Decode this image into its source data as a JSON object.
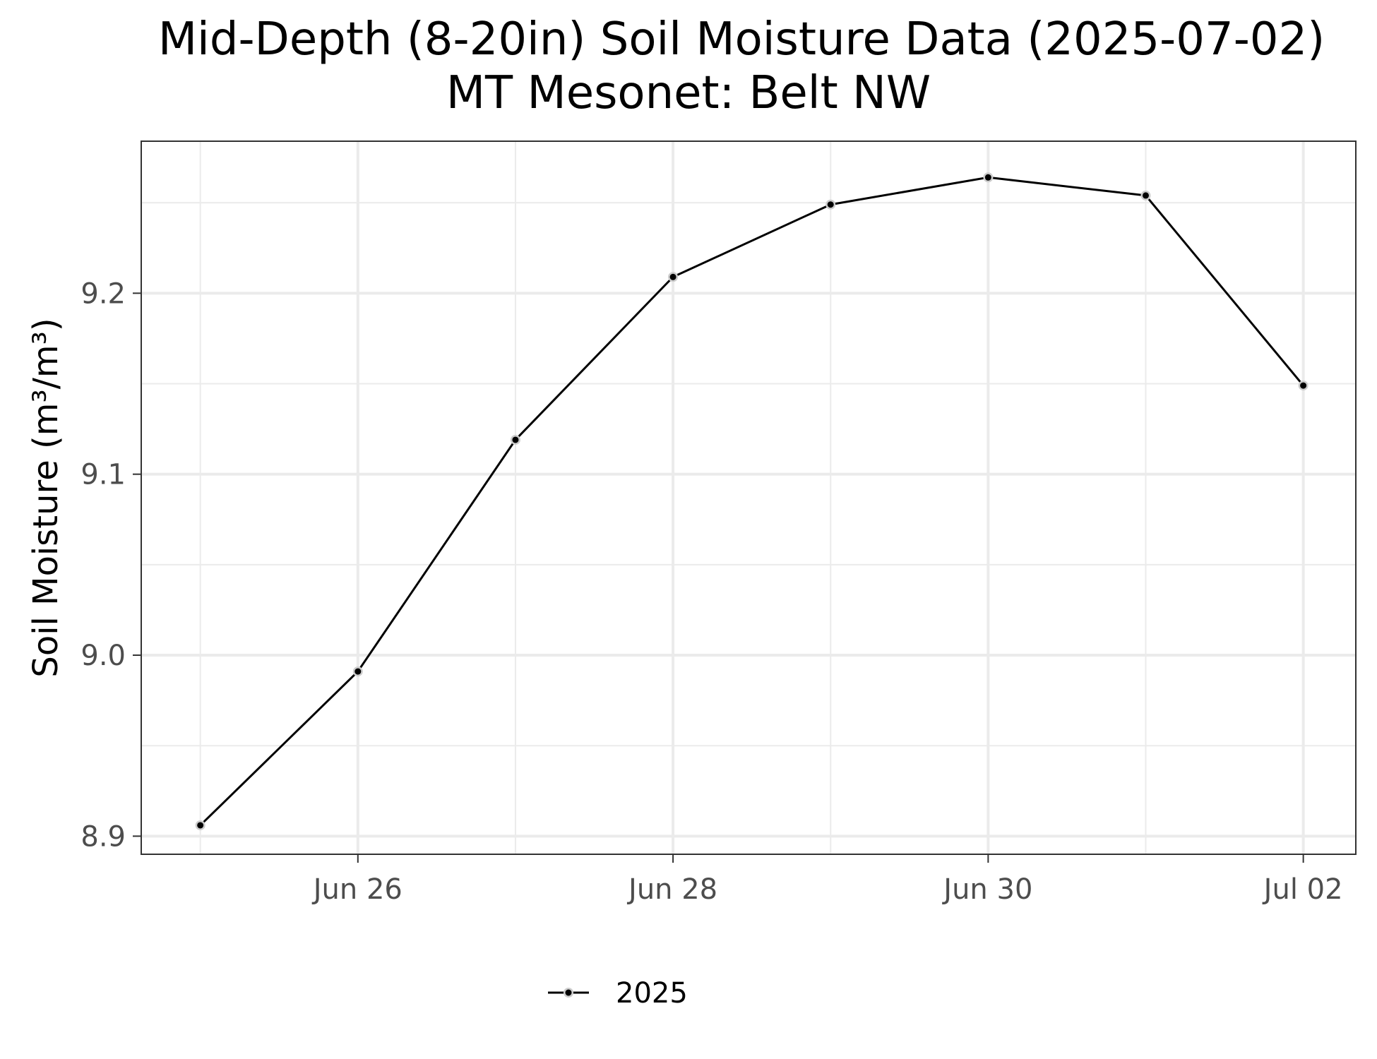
{
  "chart_data": {
    "type": "line",
    "title": "Mid-Depth (8-20in) Soil Moisture Data (2025-07-02)",
    "subtitle": "MT Mesonet: Belt NW",
    "xlabel": "",
    "ylabel": "Soil Moisture (m³/m³)",
    "x": [
      "2025-06-25",
      "2025-06-26",
      "2025-06-27",
      "2025-06-28",
      "2025-06-29",
      "2025-06-30",
      "2025-07-01",
      "2025-07-02"
    ],
    "x_ticks": [
      {
        "date": "2025-06-26",
        "label": "Jun 26"
      },
      {
        "date": "2025-06-28",
        "label": "Jun 28"
      },
      {
        "date": "2025-06-30",
        "label": "Jun 30"
      },
      {
        "date": "2025-07-02",
        "label": "Jul 02"
      }
    ],
    "y_ticks": [
      8.9,
      9.0,
      9.1,
      9.2
    ],
    "ylim": [
      8.89,
      9.284
    ],
    "xlim": [
      "2025-06-24T15:00",
      "2025-07-02T08:00"
    ],
    "grid": true,
    "legend_position": "bottom",
    "series": [
      {
        "name": "2025",
        "color": "#000000",
        "values": [
          8.906,
          8.991,
          9.119,
          9.209,
          9.249,
          9.264,
          9.254,
          9.149
        ]
      }
    ]
  }
}
